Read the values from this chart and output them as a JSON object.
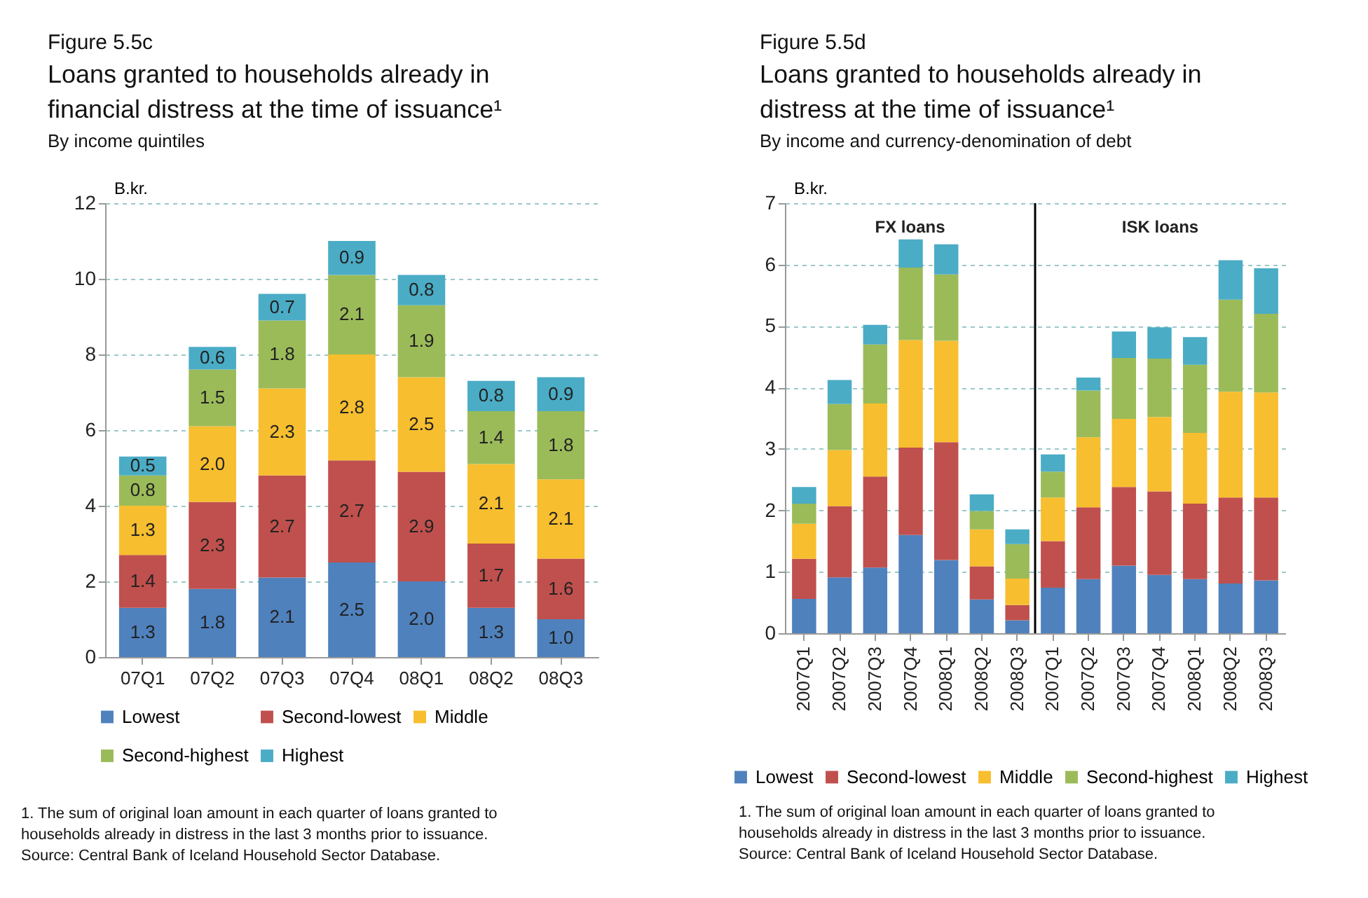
{
  "chart_data": [
    {
      "type": "bar",
      "stacked": true,
      "title": "Loans granted to households already in financial distress at the time of issuance¹",
      "subtitle": "By income quintiles",
      "ylabel": "B.kr.",
      "categories": [
        "07Q1",
        "07Q2",
        "07Q3",
        "07Q4",
        "08Q1",
        "08Q2",
        "08Q3"
      ],
      "series": [
        {
          "name": "Lowest",
          "color": "#4f81bd",
          "values": [
            1.3,
            1.8,
            2.1,
            2.5,
            2.0,
            1.3,
            1.0
          ],
          "value_labels": [
            "1.3",
            "1.8",
            "2.1",
            "2.5",
            "2.0",
            "1.3",
            "1.0"
          ]
        },
        {
          "name": "Second-lowest",
          "color": "#c0504d",
          "values": [
            1.4,
            2.3,
            2.7,
            2.7,
            2.9,
            1.7,
            1.6
          ],
          "value_labels": [
            "1.4",
            "2.3",
            "2.7",
            "2.7",
            "2.9",
            "1.7",
            "1.6"
          ]
        },
        {
          "name": "Middle",
          "color": "#f7be2f",
          "values": [
            1.3,
            2.0,
            2.3,
            2.8,
            2.5,
            2.1,
            2.1
          ],
          "value_labels": [
            "1.3",
            "2.0",
            "2.3",
            "2.8",
            "2.5",
            "2.1",
            "2.1"
          ]
        },
        {
          "name": "Second-highest",
          "color": "#9bbb59",
          "values": [
            0.8,
            1.5,
            1.8,
            2.1,
            1.9,
            1.4,
            1.8
          ],
          "value_labels": [
            "0.8",
            "1.5",
            "1.8",
            "2.1",
            "1.9",
            "1.4",
            "1.8"
          ]
        },
        {
          "name": "Highest",
          "color": "#4bacc6",
          "values": [
            0.5,
            0.6,
            0.7,
            0.9,
            0.8,
            0.8,
            0.9
          ],
          "value_labels": [
            "0.5",
            "0.6",
            "0.7",
            "0.9",
            "0.8",
            "0.8",
            "0.9"
          ]
        }
      ],
      "ylim": [
        0,
        12
      ],
      "yticks": [
        0,
        2,
        4,
        6,
        8,
        10,
        12
      ],
      "grid": "y",
      "legend": "bottom",
      "annotations": [
        "Figure 5.5c",
        "1. The sum of original loan amount  in each quarter of loans granted to households already in distress in the last 3 months prior to issuance.",
        "Source: Central Bank of Iceland Household Sector Database."
      ]
    },
    {
      "type": "bar",
      "stacked": true,
      "title": "Loans granted to households already in distress at the time of issuance¹",
      "subtitle": "By income and currency-denomination of debt",
      "ylabel": "B.kr.",
      "categories": [
        "2007Q1",
        "2007Q2",
        "2007Q3",
        "2007Q4",
        "2008Q1",
        "2008Q2",
        "2008Q3",
        "2007Q1",
        "2007Q2",
        "2007Q3",
        "2007Q4",
        "2008Q1",
        "2008Q2",
        "2008Q3"
      ],
      "series": [
        {
          "name": "Lowest",
          "color": "#4f81bd",
          "values": [
            0.56,
            0.91,
            1.07,
            1.6,
            1.19,
            0.55,
            0.21,
            0.74,
            0.88,
            1.1,
            0.95,
            0.88,
            0.81,
            0.86
          ]
        },
        {
          "name": "Second-lowest",
          "color": "#c0504d",
          "values": [
            0.65,
            1.16,
            1.48,
            1.42,
            1.92,
            0.54,
            0.25,
            0.76,
            1.17,
            1.28,
            1.36,
            1.23,
            1.4,
            1.35
          ]
        },
        {
          "name": "Middle",
          "color": "#f7be2f",
          "values": [
            0.57,
            0.91,
            1.19,
            1.75,
            1.65,
            0.6,
            0.43,
            0.71,
            1.14,
            1.11,
            1.21,
            1.15,
            1.72,
            1.71
          ]
        },
        {
          "name": "Second-highest",
          "color": "#9bbb59",
          "values": [
            0.33,
            0.75,
            0.96,
            1.18,
            1.08,
            0.3,
            0.56,
            0.42,
            0.76,
            0.99,
            0.95,
            1.11,
            1.5,
            1.28
          ]
        },
        {
          "name": "Highest",
          "color": "#4bacc6",
          "values": [
            0.27,
            0.39,
            0.32,
            0.46,
            0.49,
            0.27,
            0.24,
            0.28,
            0.21,
            0.43,
            0.51,
            0.45,
            0.64,
            0.74
          ]
        }
      ],
      "ylim": [
        0,
        7
      ],
      "yticks": [
        0,
        1,
        2,
        3,
        4,
        5,
        6,
        7
      ],
      "grid": "y",
      "legend": "bottom",
      "ref_lines": [
        {
          "axis": "x",
          "value": "2008Q3",
          "color": "#000000"
        }
      ],
      "annotations": [
        "Figure 5.5d",
        "FX loans",
        "ISK loans",
        "1. The sum of original loan amount  in each quarter of loans granted to households already in distress in the last 3 months prior to issuance.",
        "Source: Central Bank of Iceland Household Sector Database."
      ]
    }
  ]
}
